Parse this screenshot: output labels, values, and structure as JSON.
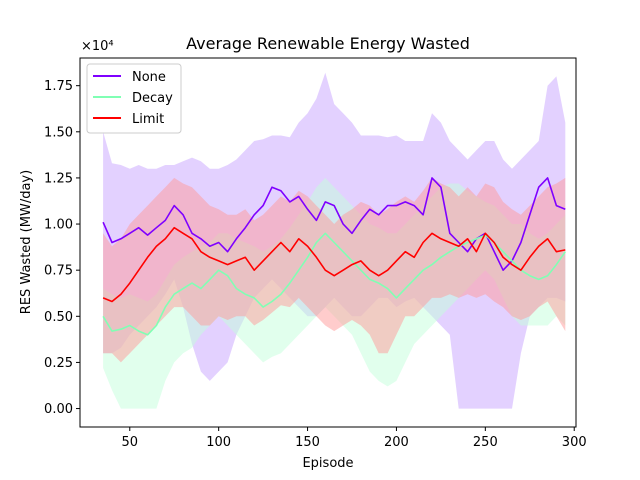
{
  "chart_data": {
    "type": "line",
    "title": "Average Renewable Energy Wasted",
    "xlabel": "Episode",
    "ylabel": "RES Wasted (MW/day)",
    "y_multiplier_label": "×10⁴",
    "xlim": [
      22,
      301
    ],
    "ylim": [
      -0.1,
      1.9
    ],
    "xticks": [
      50,
      100,
      150,
      200,
      250,
      300
    ],
    "yticks": [
      0.0,
      0.25,
      0.5,
      0.75,
      1.0,
      1.25,
      1.5,
      1.75
    ],
    "ytick_labels": [
      "0.00",
      "0.25",
      "0.50",
      "0.75",
      "1.00",
      "1.25",
      "1.50",
      "1.75"
    ],
    "legend": {
      "position": "top-left",
      "entries": [
        "None",
        "Decay",
        "Limit"
      ]
    },
    "grid": false,
    "x": [
      35,
      40,
      45,
      50,
      55,
      60,
      65,
      70,
      75,
      80,
      85,
      90,
      95,
      100,
      105,
      110,
      115,
      120,
      125,
      130,
      135,
      140,
      145,
      150,
      155,
      160,
      165,
      170,
      175,
      180,
      185,
      190,
      195,
      200,
      205,
      210,
      215,
      220,
      225,
      230,
      235,
      240,
      245,
      250,
      255,
      260,
      265,
      270,
      275,
      280,
      285,
      290,
      295
    ],
    "series": [
      {
        "name": "None",
        "color": "#7f00ff",
        "fill_color": "#c7a3ff",
        "values": [
          1.01,
          0.9,
          0.92,
          0.95,
          0.98,
          0.94,
          0.98,
          1.02,
          1.1,
          1.05,
          0.95,
          0.92,
          0.88,
          0.9,
          0.85,
          0.92,
          0.98,
          1.05,
          1.1,
          1.2,
          1.18,
          1.12,
          1.15,
          1.08,
          1.02,
          1.12,
          1.1,
          1.0,
          0.95,
          1.02,
          1.08,
          1.05,
          1.1,
          1.1,
          1.12,
          1.1,
          1.05,
          1.25,
          1.2,
          0.95,
          0.9,
          0.85,
          0.92,
          0.95,
          0.85,
          0.75,
          0.8,
          0.9,
          1.05,
          1.2,
          1.25,
          1.1,
          1.08
        ],
        "lower": [
          0.3,
          0.3,
          0.33,
          0.4,
          0.45,
          0.5,
          0.55,
          0.62,
          0.7,
          0.55,
          0.35,
          0.2,
          0.15,
          0.2,
          0.25,
          0.4,
          0.5,
          0.6,
          0.65,
          0.7,
          0.65,
          0.6,
          0.55,
          0.5,
          0.5,
          0.55,
          0.6,
          0.55,
          0.5,
          0.5,
          0.55,
          0.6,
          0.6,
          0.55,
          0.58,
          0.6,
          0.55,
          0.5,
          0.45,
          0.4,
          0.0,
          0.0,
          0.0,
          0.0,
          0.0,
          0.0,
          0.0,
          0.3,
          0.5,
          0.55,
          0.6,
          0.6,
          0.58
        ],
        "upper": [
          1.5,
          1.33,
          1.32,
          1.3,
          1.32,
          1.3,
          1.3,
          1.32,
          1.32,
          1.34,
          1.36,
          1.34,
          1.3,
          1.3,
          1.32,
          1.35,
          1.4,
          1.45,
          1.46,
          1.48,
          1.48,
          1.47,
          1.55,
          1.6,
          1.68,
          1.82,
          1.65,
          1.6,
          1.55,
          1.48,
          1.48,
          1.48,
          1.47,
          1.48,
          1.45,
          1.45,
          1.45,
          1.6,
          1.55,
          1.45,
          1.4,
          1.35,
          1.4,
          1.45,
          1.45,
          1.35,
          1.3,
          1.35,
          1.4,
          1.45,
          1.75,
          1.8,
          1.55
        ]
      },
      {
        "name": "Decay",
        "color": "#80ffb4",
        "fill_color": "#c4ffdc",
        "values": [
          0.5,
          0.42,
          0.43,
          0.45,
          0.42,
          0.4,
          0.45,
          0.55,
          0.62,
          0.65,
          0.68,
          0.65,
          0.7,
          0.75,
          0.72,
          0.65,
          0.62,
          0.6,
          0.55,
          0.58,
          0.62,
          0.68,
          0.75,
          0.82,
          0.9,
          0.95,
          0.9,
          0.85,
          0.8,
          0.75,
          0.7,
          0.68,
          0.65,
          0.6,
          0.65,
          0.7,
          0.75,
          0.78,
          0.82,
          0.85,
          0.88,
          0.9,
          0.92,
          0.94,
          0.9,
          0.85,
          0.8,
          0.75,
          0.72,
          0.7,
          0.72,
          0.78,
          0.85
        ],
        "lower": [
          0.22,
          0.1,
          0.0,
          0.0,
          0.0,
          0.0,
          0.0,
          0.15,
          0.25,
          0.3,
          0.33,
          0.4,
          0.45,
          0.5,
          0.45,
          0.4,
          0.35,
          0.3,
          0.25,
          0.28,
          0.3,
          0.35,
          0.4,
          0.45,
          0.5,
          0.55,
          0.5,
          0.45,
          0.4,
          0.3,
          0.2,
          0.15,
          0.12,
          0.15,
          0.25,
          0.35,
          0.4,
          0.45,
          0.5,
          0.55,
          0.6,
          0.65,
          0.7,
          0.75,
          0.7,
          0.6,
          0.5,
          0.45,
          0.45,
          0.45,
          0.45,
          0.5,
          0.45
        ],
        "upper": [
          0.65,
          0.62,
          0.6,
          0.62,
          0.6,
          0.58,
          0.62,
          0.7,
          0.78,
          0.82,
          0.85,
          0.88,
          0.9,
          0.95,
          0.95,
          0.92,
          0.9,
          0.88,
          0.85,
          0.88,
          0.92,
          0.98,
          1.05,
          1.12,
          1.2,
          1.25,
          1.2,
          1.15,
          1.1,
          1.05,
          1.0,
          0.98,
          0.95,
          0.95,
          1.0,
          1.05,
          1.1,
          1.15,
          1.2,
          1.22,
          1.22,
          1.18,
          1.15,
          1.12,
          1.1,
          1.05,
          1.0,
          1.0,
          0.95,
          0.92,
          0.95,
          1.0,
          1.05
        ]
      },
      {
        "name": "Limit",
        "color": "#ff0000",
        "fill_color": "#ff9a9a",
        "values": [
          0.6,
          0.58,
          0.62,
          0.68,
          0.75,
          0.82,
          0.88,
          0.92,
          0.98,
          0.95,
          0.92,
          0.85,
          0.82,
          0.8,
          0.78,
          0.8,
          0.82,
          0.75,
          0.8,
          0.85,
          0.9,
          0.85,
          0.92,
          0.88,
          0.82,
          0.75,
          0.72,
          0.75,
          0.78,
          0.8,
          0.75,
          0.72,
          0.75,
          0.8,
          0.85,
          0.82,
          0.9,
          0.95,
          0.92,
          0.9,
          0.88,
          0.92,
          0.85,
          0.95,
          0.9,
          0.82,
          0.78,
          0.75,
          0.82,
          0.88,
          0.92,
          0.85,
          0.86
        ],
        "lower": [
          0.3,
          0.3,
          0.25,
          0.3,
          0.35,
          0.4,
          0.45,
          0.5,
          0.55,
          0.55,
          0.5,
          0.45,
          0.45,
          0.5,
          0.48,
          0.5,
          0.5,
          0.45,
          0.48,
          0.52,
          0.56,
          0.55,
          0.6,
          0.55,
          0.5,
          0.45,
          0.42,
          0.45,
          0.48,
          0.45,
          0.4,
          0.3,
          0.3,
          0.4,
          0.5,
          0.5,
          0.55,
          0.6,
          0.6,
          0.62,
          0.6,
          0.62,
          0.6,
          0.62,
          0.58,
          0.55,
          0.5,
          0.48,
          0.5,
          0.55,
          0.58,
          0.5,
          0.42
        ],
        "upper": [
          0.95,
          0.88,
          0.92,
          1.0,
          1.05,
          1.1,
          1.15,
          1.2,
          1.25,
          1.22,
          1.2,
          1.15,
          1.1,
          1.08,
          1.05,
          1.05,
          1.08,
          1.02,
          1.05,
          1.1,
          1.15,
          1.12,
          1.18,
          1.15,
          1.1,
          1.05,
          1.0,
          1.05,
          1.08,
          1.12,
          1.1,
          1.05,
          1.08,
          1.12,
          1.15,
          1.12,
          1.18,
          1.25,
          1.22,
          1.2,
          1.15,
          1.2,
          1.15,
          1.22,
          1.2,
          1.12,
          1.08,
          1.05,
          1.1,
          1.15,
          1.2,
          1.22,
          1.25
        ]
      }
    ]
  }
}
